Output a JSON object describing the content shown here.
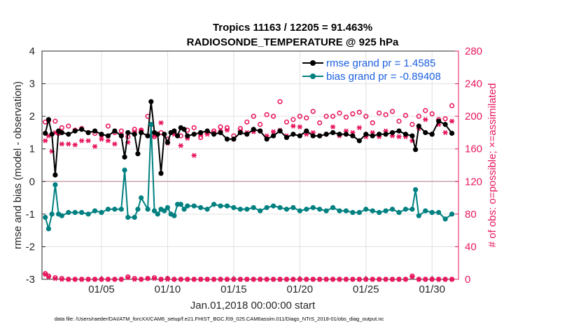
{
  "chart_data": {
    "type": "line",
    "title": "Tropics 11163 / 12205 = 91.463%",
    "subtitle": "RADIOSONDE_TEMPERATURE @ 925 hPa",
    "xlabel": "Jan.01,2018 00:00:00 start",
    "ylabel": "rmse and bias (model - observation)",
    "ylabel_right": "# of obs: o=possible; ×=assimilated",
    "xlim": [
      0.5,
      32.0
    ],
    "ylim": [
      -3,
      4
    ],
    "ylim_right": [
      0,
      280
    ],
    "x_ticks": [
      5,
      10,
      15,
      20,
      25,
      30
    ],
    "x_tick_labels": [
      "01/05",
      "01/10",
      "01/15",
      "01/20",
      "01/25",
      "01/30"
    ],
    "y_ticks": [
      -3,
      -2,
      -1,
      0,
      1,
      2,
      3,
      4
    ],
    "y_tick_labels": [
      "-3",
      "-2",
      "-1",
      "0",
      "1",
      "2",
      "3",
      "4"
    ],
    "y_ticks_right": [
      0,
      40,
      80,
      120,
      160,
      200,
      240,
      280
    ],
    "y_tick_labels_right": [
      "0",
      "40",
      "80",
      "120",
      "160",
      "200",
      "240",
      "280"
    ],
    "grid": true,
    "legend_position": "top-right",
    "legend": [
      "rmse grand pr = 1.4585",
      "bias grand pr = -0.89408"
    ],
    "series": [
      {
        "name": "rmse grand pr = 1.4585",
        "axis": "left",
        "color": "#000000",
        "x": [
          0.75,
          1.0,
          1.25,
          1.5,
          1.75,
          2.0,
          2.5,
          3.0,
          3.5,
          4.0,
          4.5,
          5.0,
          5.5,
          6.0,
          6.5,
          6.75,
          7.0,
          7.5,
          7.75,
          8.0,
          8.5,
          8.75,
          9.0,
          9.25,
          9.5,
          9.75,
          10.0,
          10.25,
          10.5,
          10.75,
          11.0,
          11.25,
          11.5,
          12.0,
          12.5,
          13.0,
          13.5,
          14.0,
          14.5,
          15.0,
          15.5,
          16.0,
          16.5,
          17.0,
          17.5,
          18.0,
          18.5,
          19.0,
          19.5,
          20.0,
          20.5,
          21.0,
          21.5,
          22.0,
          22.5,
          23.0,
          23.5,
          24.0,
          24.5,
          25.0,
          25.5,
          26.0,
          26.5,
          27.0,
          27.5,
          28.0,
          28.5,
          28.75,
          29.0,
          29.5,
          30.0,
          30.5,
          31.0,
          31.5
        ],
        "values": [
          1.48,
          1.9,
          1.45,
          0.2,
          1.55,
          1.5,
          1.45,
          1.55,
          1.6,
          1.5,
          1.55,
          1.45,
          1.4,
          1.55,
          1.4,
          0.75,
          1.5,
          1.45,
          0.85,
          1.5,
          1.4,
          2.45,
          1.5,
          1.45,
          0.25,
          1.45,
          1.2,
          1.5,
          1.55,
          1.4,
          1.65,
          1.6,
          1.4,
          1.45,
          1.5,
          1.55,
          1.45,
          1.5,
          1.3,
          1.3,
          1.5,
          1.45,
          1.6,
          1.55,
          1.3,
          1.4,
          1.55,
          1.35,
          1.45,
          1.4,
          1.55,
          1.4,
          1.4,
          1.45,
          1.5,
          1.45,
          1.45,
          1.4,
          1.25,
          1.45,
          1.4,
          1.45,
          1.45,
          1.5,
          1.55,
          1.45,
          1.4,
          0.98,
          1.7,
          1.5,
          1.45,
          1.85,
          1.75,
          1.48
        ]
      },
      {
        "name": "bias grand pr = -0.89408",
        "axis": "left",
        "color": "#008080",
        "x": [
          0.75,
          1.0,
          1.25,
          1.5,
          1.75,
          2.0,
          2.5,
          3.0,
          3.5,
          4.0,
          4.5,
          5.0,
          5.5,
          6.0,
          6.5,
          6.75,
          7.0,
          7.5,
          7.75,
          8.0,
          8.5,
          8.75,
          9.0,
          9.25,
          9.5,
          9.75,
          10.0,
          10.25,
          10.5,
          10.75,
          11.0,
          11.25,
          11.5,
          12.0,
          12.5,
          13.0,
          13.5,
          14.0,
          14.5,
          15.0,
          15.5,
          16.0,
          16.5,
          17.0,
          17.5,
          18.0,
          18.5,
          19.0,
          19.5,
          20.0,
          20.5,
          21.0,
          21.5,
          22.0,
          22.5,
          23.0,
          23.5,
          24.0,
          24.5,
          25.0,
          25.5,
          26.0,
          26.5,
          27.0,
          27.5,
          28.0,
          28.5,
          28.75,
          29.0,
          29.5,
          30.0,
          30.5,
          31.0,
          31.5
        ],
        "values": [
          -1.1,
          -1.45,
          -1.0,
          -0.1,
          -1.0,
          -1.05,
          -0.95,
          -0.95,
          -0.95,
          -1.0,
          -0.9,
          -0.95,
          -0.85,
          -0.85,
          -0.85,
          0.35,
          -1.1,
          -1.1,
          -0.85,
          -0.5,
          -0.85,
          1.75,
          -0.9,
          -1.0,
          -0.85,
          -0.9,
          -0.8,
          -1.0,
          -1.05,
          -0.7,
          -0.7,
          -0.85,
          -0.75,
          -0.75,
          -0.8,
          -0.85,
          -0.7,
          -0.75,
          -0.75,
          -0.8,
          -0.85,
          -0.85,
          -0.8,
          -0.9,
          -0.8,
          -0.75,
          -0.8,
          -0.85,
          -0.8,
          -0.9,
          -0.85,
          -0.8,
          -0.85,
          -0.9,
          -0.8,
          -0.9,
          -0.9,
          -0.95,
          -0.95,
          -0.85,
          -0.9,
          -0.95,
          -0.9,
          -0.85,
          -0.95,
          -0.85,
          -0.85,
          -0.25,
          -1.05,
          -0.9,
          -0.95,
          -0.95,
          -1.15,
          -1.0
        ]
      },
      {
        "name": "possible (o)",
        "axis": "right",
        "marker": "o",
        "color": "#e8175d",
        "x": [
          0.75,
          1.0,
          1.5,
          2.0,
          2.5,
          3.0,
          3.5,
          4.0,
          4.5,
          5.0,
          5.5,
          6.0,
          6.5,
          7.0,
          7.5,
          8.0,
          8.5,
          9.0,
          9.5,
          10.0,
          10.5,
          11.0,
          11.5,
          12.0,
          12.5,
          13.0,
          13.5,
          14.0,
          14.5,
          15.0,
          15.5,
          16.0,
          16.5,
          17.0,
          17.5,
          18.0,
          18.5,
          19.0,
          19.5,
          20.0,
          20.5,
          21.0,
          21.5,
          22.0,
          22.5,
          23.0,
          23.5,
          24.0,
          24.5,
          25.0,
          25.5,
          26.0,
          26.5,
          27.0,
          27.5,
          28.0,
          28.5,
          29.0,
          29.5,
          30.0,
          30.5,
          31.0,
          31.5
        ],
        "values": [
          193,
          195,
          194,
          186,
          188,
          183,
          185,
          180,
          179,
          177,
          188,
          180,
          182,
          175,
          184,
          183,
          200,
          175,
          180,
          172,
          180,
          176,
          183,
          186,
          174,
          180,
          182,
          187,
          186,
          176,
          185,
          193,
          200,
          190,
          202,
          200,
          218,
          193,
          196,
          200,
          198,
          206,
          192,
          200,
          200,
          204,
          199,
          203,
          205,
          200,
          192,
          204,
          202,
          206,
          194,
          201,
          190,
          200,
          207,
          203,
          196,
          197,
          213
        ]
      },
      {
        "name": "assimilated (×)",
        "axis": "right",
        "marker": "x",
        "color": "#e8175d",
        "x": [
          0.75,
          1.0,
          1.25,
          1.5,
          1.75,
          2.0,
          2.5,
          3.0,
          3.5,
          4.0,
          4.5,
          5.0,
          5.5,
          6.0,
          6.5,
          7.0,
          7.5,
          8.0,
          8.5,
          9.0,
          9.5,
          10.0,
          10.5,
          11.0,
          11.5,
          12.0,
          12.5,
          13.0,
          13.5,
          14.0,
          14.5,
          15.0,
          15.5,
          16.0,
          16.5,
          17.0,
          17.5,
          18.0,
          18.5,
          19.0,
          19.5,
          20.0,
          20.5,
          21.0,
          21.5,
          22.0,
          22.5,
          23.0,
          23.5,
          24.0,
          24.5,
          25.0,
          25.5,
          26.0,
          26.5,
          27.0,
          27.5,
          28.0,
          28.5,
          29.0,
          29.5,
          30.0,
          30.5,
          31.0,
          31.5
        ],
        "values": [
          170,
          176,
          157,
          180,
          179,
          166,
          166,
          165,
          170,
          170,
          163,
          172,
          170,
          166,
          178,
          168,
          181,
          183,
          176,
          176,
          192,
          167,
          178,
          164,
          173,
          152,
          177,
          178,
          180,
          182,
          183,
          172,
          182,
          180,
          181,
          182,
          176,
          181,
          183,
          176,
          188,
          187,
          178,
          180,
          176,
          178,
          187,
          176,
          182,
          180,
          186,
          175,
          180,
          175,
          182,
          176,
          175,
          175,
          170,
          185,
          196,
          178,
          190,
          180,
          194
        ]
      },
      {
        "name": "possible (low)",
        "axis": "right",
        "marker": "o",
        "color": "#e8175d",
        "x": [
          0.75,
          1.0,
          1.5,
          2.0,
          2.5,
          3.0,
          3.5,
          4.0,
          4.5,
          5.0,
          5.5,
          6.0,
          6.5,
          7.0,
          7.5,
          8.0,
          8.5,
          9.0,
          9.5,
          10.0,
          10.5,
          11.0,
          11.5,
          12.0,
          12.5,
          13.0,
          13.5,
          14.0,
          14.5,
          15.0,
          15.5,
          16.0,
          16.5,
          17.0,
          17.5,
          18.0,
          18.5,
          19.0,
          19.5,
          20.0,
          20.5,
          21.0,
          21.5,
          22.0,
          22.5,
          23.0,
          23.5,
          24.0,
          24.5,
          25.0,
          25.5,
          26.0,
          26.5,
          27.0,
          27.5,
          28.0,
          28.5,
          29.0,
          29.5,
          30.0,
          30.5,
          31.0,
          31.5
        ],
        "values": [
          7,
          4,
          2,
          1,
          0,
          0,
          0,
          0,
          0,
          0,
          0,
          0,
          0,
          3,
          1,
          0,
          1,
          2,
          0,
          1,
          0,
          0,
          0,
          0,
          0,
          0,
          0,
          0,
          0,
          0,
          0,
          0,
          0,
          0,
          0,
          0,
          0,
          0,
          0,
          0,
          0,
          0,
          0,
          0,
          0,
          0,
          0,
          0,
          0,
          0,
          0,
          0,
          0,
          0,
          0,
          0,
          4,
          0,
          0,
          0,
          0,
          0,
          0
        ]
      },
      {
        "name": "assimilated (low)",
        "axis": "right",
        "marker": "x",
        "color": "#e8175d",
        "x": [
          0.75,
          1.0,
          1.5,
          2.0,
          2.5,
          3.0,
          3.5,
          4.0,
          4.5,
          5.0,
          5.5,
          6.0,
          6.5,
          7.0,
          7.5,
          8.0,
          8.5,
          9.0,
          9.5,
          10.0,
          10.5,
          11.0,
          11.5,
          12.0,
          12.5,
          13.0,
          13.5,
          14.0,
          14.5,
          15.0,
          15.5,
          16.0,
          16.5,
          17.0,
          17.5,
          18.0,
          18.5,
          19.0,
          19.5,
          20.0,
          20.5,
          21.0,
          21.5,
          22.0,
          22.5,
          23.0,
          23.5,
          24.0,
          24.5,
          25.0,
          25.5,
          26.0,
          26.5,
          27.0,
          27.5,
          28.0,
          28.5,
          29.0,
          29.5,
          30.0,
          30.5,
          31.0,
          31.5
        ],
        "values": [
          6,
          3,
          1,
          0,
          0,
          0,
          0,
          0,
          0,
          0,
          0,
          0,
          0,
          2,
          0,
          0,
          1,
          1,
          0,
          0,
          0,
          0,
          0,
          0,
          0,
          0,
          0,
          0,
          0,
          0,
          0,
          0,
          0,
          0,
          0,
          0,
          0,
          0,
          0,
          0,
          0,
          0,
          0,
          0,
          0,
          0,
          0,
          0,
          0,
          0,
          0,
          0,
          0,
          0,
          0,
          0,
          3,
          0,
          0,
          0,
          0,
          0,
          0
        ]
      }
    ]
  },
  "footer": {
    "data_file": "data file: /Users/raeder/DAI/ATM_forcXX/CAM6_setup/f.e21.FHIST_BGC.f09_025.CAM6assim.011/Diags_NTrS_2018-01/obs_diag_output.nc"
  },
  "colors": {
    "rmse": "#000000",
    "bias": "#008080",
    "obs_count": "#e8175d",
    "legend_text": "#1b5fe0"
  }
}
